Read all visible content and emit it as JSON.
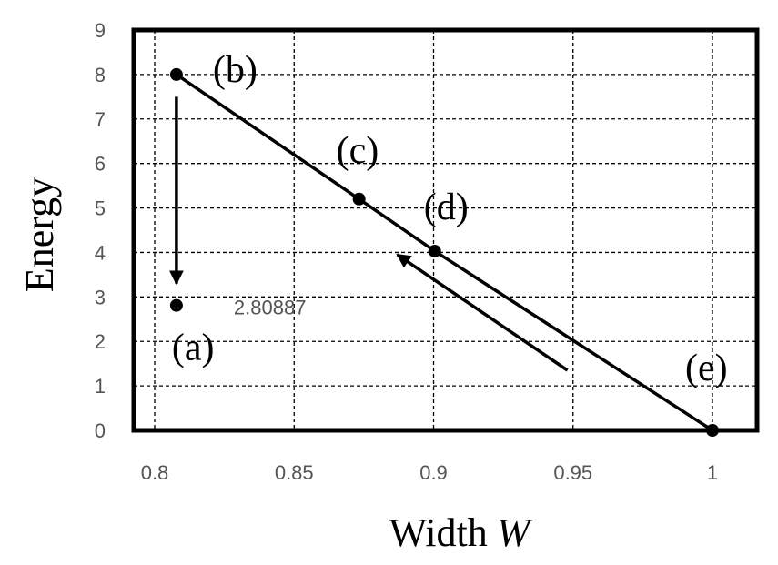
{
  "chart_data": {
    "type": "line",
    "title": "",
    "xlabel": "Width",
    "xlabel_var": "W",
    "ylabel": "Energy",
    "xlim": [
      0.8,
      1.0
    ],
    "ylim": [
      0,
      9
    ],
    "x_ticks": [
      "0.8",
      "0.85",
      "0.9",
      "0.95",
      "1"
    ],
    "y_ticks": [
      "0",
      "1",
      "2",
      "3",
      "4",
      "5",
      "6",
      "7",
      "8",
      "9"
    ],
    "grid": true,
    "series": [
      {
        "x": [
          0.8078,
          0.8733,
          0.9004,
          1.0
        ],
        "y": [
          8.0,
          5.2,
          4.03,
          0.0
        ]
      }
    ],
    "points": [
      {
        "label": "(a)",
        "x": 0.8078,
        "y": 2.80887
      },
      {
        "label": "(b)",
        "x": 0.8078,
        "y": 8.0
      },
      {
        "label": "(c)",
        "x": 0.8733,
        "y": 5.2
      },
      {
        "label": "(d)",
        "x": 0.9004,
        "y": 4.03
      },
      {
        "label": "(e)",
        "x": 1.0,
        "y": 0.0
      }
    ],
    "annotations": [
      {
        "text": "2.80887"
      }
    ],
    "arrows": [
      {
        "from": [
          0.8078,
          7.5
        ],
        "to": [
          0.8078,
          3.3
        ]
      },
      {
        "from": [
          0.948,
          1.35
        ],
        "to": [
          0.887,
          3.95
        ]
      }
    ]
  }
}
